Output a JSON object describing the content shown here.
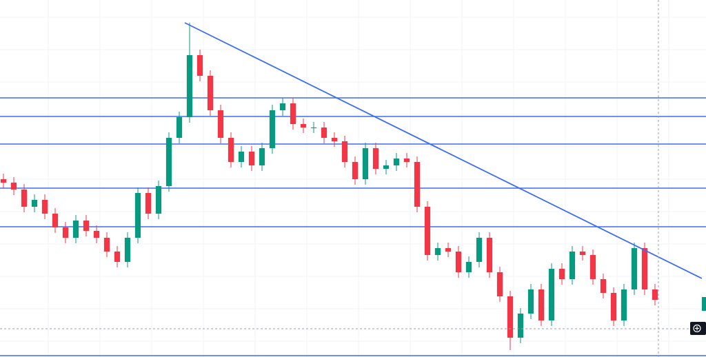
{
  "chart_data": {
    "type": "candlestick",
    "up_color": "#089981",
    "down_color": "#f23645",
    "line_color": "#3b6cf2",
    "grid": true,
    "xlim": [
      -0.333,
      67.933
    ],
    "ylim": [
      0,
      518
    ],
    "open": [
      258,
      253,
      243,
      218,
      228,
      208,
      188,
      173,
      198,
      183,
      173,
      153,
      138,
      173,
      238,
      208,
      248,
      318,
      348,
      438,
      408,
      358,
      318,
      283,
      298,
      278,
      303,
      358,
      368,
      338,
      333,
      333,
      318,
      313,
      283,
      258,
      303,
      273,
      278,
      288,
      283,
      218,
      148,
      158,
      153,
      123,
      138,
      173,
      123,
      88,
      28,
      63,
      98,
      53,
      128,
      113,
      153,
      148,
      113,
      93,
      53,
      98,
      158,
      98
    ],
    "high": [
      266,
      261,
      251,
      236,
      236,
      216,
      196,
      206,
      206,
      191,
      181,
      161,
      181,
      246,
      246,
      256,
      326,
      356,
      485,
      446,
      416,
      366,
      326,
      306,
      306,
      311,
      366,
      376,
      376,
      346,
      341,
      341,
      326,
      321,
      291,
      311,
      311,
      286,
      296,
      296,
      291,
      226,
      166,
      166,
      161,
      146,
      181,
      181,
      131,
      96,
      71,
      106,
      106,
      136,
      136,
      161,
      161,
      156,
      121,
      101,
      106,
      166,
      166,
      106
    ],
    "low": [
      245,
      235,
      210,
      210,
      200,
      180,
      165,
      165,
      175,
      165,
      145,
      130,
      130,
      165,
      200,
      200,
      240,
      310,
      340,
      400,
      350,
      310,
      275,
      275,
      270,
      270,
      295,
      350,
      330,
      325,
      325,
      310,
      305,
      275,
      250,
      250,
      265,
      265,
      270,
      275,
      210,
      140,
      140,
      145,
      115,
      115,
      130,
      115,
      80,
      10,
      20,
      55,
      45,
      45,
      105,
      105,
      140,
      105,
      85,
      45,
      45,
      90,
      90,
      75
    ],
    "close": [
      253,
      243,
      218,
      228,
      208,
      188,
      173,
      198,
      183,
      173,
      153,
      138,
      173,
      238,
      208,
      248,
      318,
      348,
      438,
      408,
      358,
      318,
      283,
      298,
      278,
      303,
      358,
      368,
      338,
      333,
      333,
      318,
      313,
      283,
      258,
      303,
      273,
      278,
      288,
      283,
      218,
      148,
      158,
      153,
      123,
      138,
      173,
      123,
      88,
      28,
      63,
      98,
      53,
      128,
      113,
      153,
      148,
      113,
      93,
      53,
      98,
      158,
      98,
      83
    ],
    "hlines": [
      376,
      349,
      309,
      245,
      189,
      2
    ],
    "trendline": {
      "x": [
        17.53,
        67.53
      ],
      "y": [
        485,
        114
      ]
    }
  }
}
